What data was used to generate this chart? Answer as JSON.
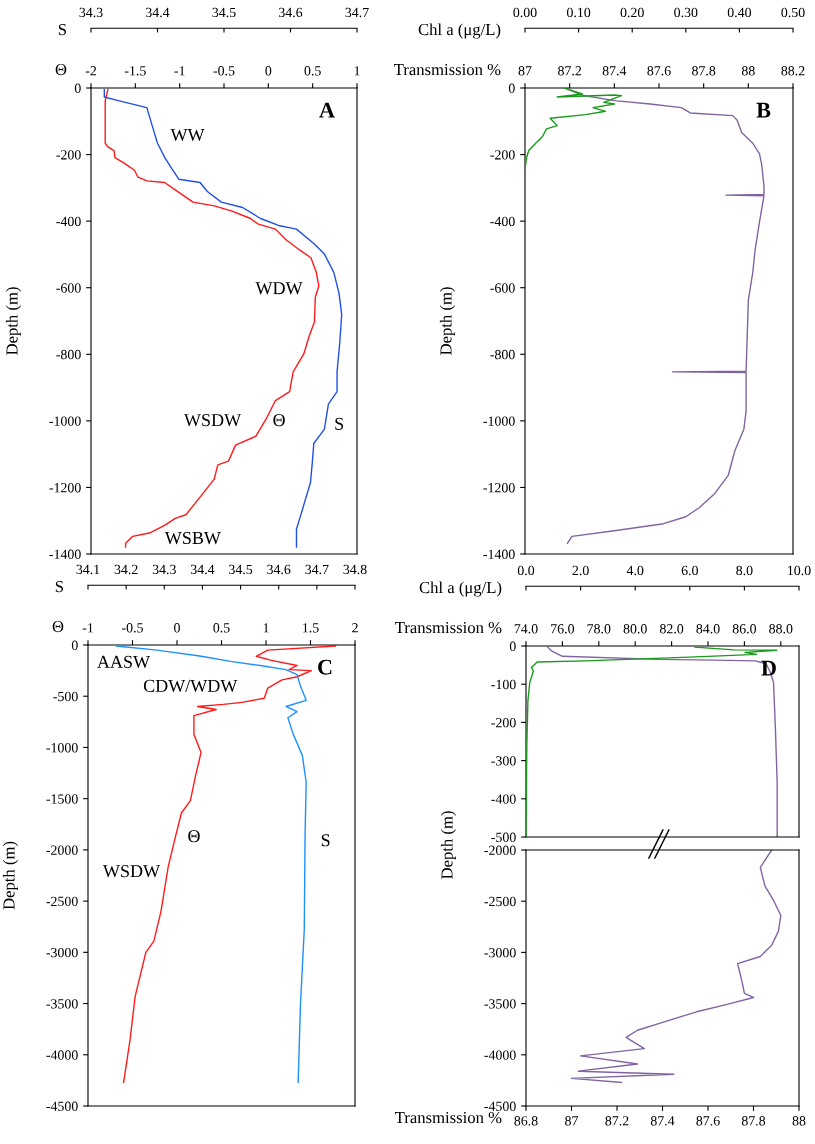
{
  "chart_data": [
    {
      "type": "line",
      "title": "A",
      "xlabel": "Θ",
      "x2label": "S",
      "ylabel": "Depth (m)",
      "xlim": [
        -2,
        1
      ],
      "xticks": [
        -2,
        -1.5,
        -1,
        -0.5,
        0,
        0.5,
        1
      ],
      "x2lim": [
        34.3,
        34.7
      ],
      "x2ticks": [
        34.3,
        34.4,
        34.5,
        34.6,
        34.7
      ],
      "ylim": [
        -1400,
        0
      ],
      "yticks": [
        0,
        -200,
        -400,
        -600,
        -800,
        -1000,
        -1200,
        -1400
      ],
      "series": [
        {
          "color": "#ff1a1a",
          "x": [
            -1.81,
            -1.84,
            -1.84,
            -1.81,
            -1.74,
            -1.73,
            -1.63,
            -1.51,
            -1.47,
            -1.37,
            -1.17,
            -1.05,
            -0.85,
            -0.61,
            -0.41,
            -0.2,
            -0.12,
            0.08,
            0.2,
            0.36,
            0.48,
            0.54,
            0.57,
            0.53,
            0.52,
            0.46,
            0.4,
            0.28,
            0.24,
            0.08,
            -0.02,
            -0.14,
            -0.37,
            -0.45,
            -0.57,
            -0.61,
            -0.77,
            -0.93,
            -1.05,
            -1.17,
            -1.33,
            -1.53,
            -1.61,
            -1.61
          ],
          "values": [
            -5,
            -38,
            -166,
            -177,
            -188,
            -209,
            -225,
            -247,
            -268,
            -279,
            -284,
            -306,
            -343,
            -354,
            -370,
            -392,
            -408,
            -424,
            -456,
            -488,
            -510,
            -553,
            -595,
            -628,
            -703,
            -746,
            -799,
            -853,
            -912,
            -939,
            -992,
            -1046,
            -1073,
            -1121,
            -1132,
            -1175,
            -1229,
            -1282,
            -1293,
            -1314,
            -1336,
            -1347,
            -1368,
            -1379
          ]
        },
        {
          "color": "#2050e8",
          "axis": "x2",
          "x": [
            34.32,
            34.32,
            34.341,
            34.384,
            34.392,
            34.4,
            34.411,
            34.421,
            34.432,
            34.464,
            34.475,
            34.496,
            34.528,
            34.555,
            34.582,
            34.609,
            34.635,
            34.651,
            34.665,
            34.673,
            34.677,
            34.674,
            34.67,
            34.67,
            34.657,
            34.651,
            34.635,
            34.633,
            34.63,
            34.622,
            34.614,
            34.609,
            34.609
          ],
          "values": [
            -5,
            -27,
            -38,
            -59,
            -113,
            -166,
            -209,
            -241,
            -274,
            -284,
            -311,
            -343,
            -359,
            -392,
            -413,
            -424,
            -467,
            -499,
            -553,
            -617,
            -681,
            -767,
            -853,
            -912,
            -950,
            -1025,
            -1068,
            -1121,
            -1186,
            -1239,
            -1293,
            -1325,
            -1379
          ]
        }
      ],
      "annotations": [
        "WW",
        "WDW",
        "WSDW",
        "Θ",
        "S",
        "WSBW"
      ]
    },
    {
      "type": "line",
      "title": "B",
      "xlabel": "Transmission %",
      "x2label": "Chl a (μg/L)",
      "ylabel": "Depth (m)",
      "xlim": [
        87,
        88.2
      ],
      "xticks": [
        87,
        87.2,
        87.4,
        87.6,
        87.8,
        88,
        88.2
      ],
      "x2lim": [
        0,
        0.5
      ],
      "x2ticks": [
        {
          "value": 0,
          "label": "0.00"
        },
        {
          "value": 0.1,
          "label": "0.10"
        },
        {
          "value": 0.2,
          "label": "0.20"
        },
        {
          "value": 0.3,
          "label": "0.30"
        },
        {
          "value": 0.4,
          "label": "0.40"
        },
        {
          "value": 0.5,
          "label": "0.50"
        }
      ],
      "ylim": [
        -1400,
        0
      ],
      "yticks": [
        0,
        -200,
        -400,
        -600,
        -800,
        -1000,
        -1200,
        -1400
      ],
      "series": [
        {
          "color": "#8064a2",
          "x": [
            87.18,
            87.25,
            87.4,
            87.56,
            87.7,
            87.74,
            87.93,
            87.95,
            87.97,
            88.02,
            88.05,
            88.06,
            88.07,
            88.07,
            87.9,
            88.07,
            88.05,
            88.03,
            88.02,
            88.0,
            87.99,
            87.66,
            87.99,
            87.99,
            87.98,
            87.94,
            87.91,
            87.85,
            87.78,
            87.72,
            87.62,
            87.4,
            87.21,
            87.19
          ],
          "values": [
            0,
            -21,
            -38,
            -48,
            -59,
            -75,
            -83,
            -97,
            -134,
            -166,
            -198,
            -231,
            -295,
            -320,
            -322,
            -324,
            -402,
            -488,
            -553,
            -638,
            -851,
            -853,
            -855,
            -971,
            -1025,
            -1089,
            -1164,
            -1218,
            -1261,
            -1288,
            -1309,
            -1330,
            -1347,
            -1368
          ]
        },
        {
          "color": "#1a9a1a",
          "axis": "x2",
          "x": [
            0.073,
            0.107,
            0.06,
            0.167,
            0.18,
            0.147,
            0.167,
            0.127,
            0.15,
            0.113,
            0.047,
            0.06,
            0.04,
            0.033,
            0.02,
            0.007,
            0.003,
            0
          ],
          "values": [
            0,
            -18,
            -27,
            -21,
            -23,
            -43,
            -48,
            -59,
            -70,
            -80,
            -91,
            -113,
            -123,
            -145,
            -166,
            -188,
            -209,
            -241
          ]
        }
      ]
    },
    {
      "type": "line",
      "title": "C",
      "xlabel": "Θ",
      "x2label": "S",
      "ylabel": "Depth (m)",
      "xlim": [
        -1,
        2
      ],
      "xticks": [
        -1,
        -0.5,
        0,
        0.5,
        1,
        1.5,
        2
      ],
      "x2lim": [
        34.1,
        34.8
      ],
      "x2ticks": [
        34.1,
        34.2,
        34.3,
        34.4,
        34.5,
        34.6,
        34.7,
        34.8
      ],
      "ylim": [
        -4500,
        0
      ],
      "yticks": [
        0,
        -500,
        -1000,
        -1500,
        -2000,
        -2500,
        -3000,
        -3500,
        -4000,
        -4500
      ],
      "series": [
        {
          "color": "#ff1a1a",
          "x": [
            1.78,
            1.02,
            0.89,
            1.06,
            1.35,
            1.26,
            1.51,
            1.35,
            1.18,
            1.02,
            0.98,
            0.73,
            0.52,
            0.23,
            0.44,
            0.19,
            0.19,
            0.27,
            0.21,
            0.15,
            0.05,
            -0.02,
            -0.1,
            -0.18,
            -0.26,
            -0.35,
            -0.47,
            -0.53,
            -0.6
          ],
          "values": [
            -10,
            -50,
            -110,
            -150,
            -200,
            -240,
            -250,
            -310,
            -340,
            -420,
            -520,
            -560,
            -580,
            -600,
            -630,
            -690,
            -870,
            -1050,
            -1270,
            -1520,
            -1640,
            -1880,
            -2170,
            -2600,
            -2890,
            -3000,
            -3430,
            -3870,
            -4270
          ]
        },
        {
          "color": "#1e90ff",
          "axis": "x2",
          "x": [
            34.175,
            34.281,
            34.397,
            34.474,
            34.551,
            34.619,
            34.648,
            34.657,
            34.672,
            34.619,
            34.648,
            34.624,
            34.638,
            34.662,
            34.672,
            34.669,
            34.667,
            34.657,
            34.651
          ],
          "values": [
            -10,
            -50,
            -110,
            -160,
            -200,
            -240,
            -290,
            -400,
            -540,
            -600,
            -650,
            -710,
            -870,
            -1080,
            -1340,
            -1880,
            -2780,
            -3510,
            -4270
          ]
        }
      ],
      "annotations": [
        "AASW",
        "CDW/WDW",
        "Θ",
        "S",
        "WSDW"
      ]
    },
    {
      "type": "line",
      "title": "D",
      "xlabel": "Transmission %",
      "x2label": "Chl a (μg/L)",
      "ylabel": "Depth (m)",
      "xlim": [
        74,
        89
      ],
      "xticks": [
        {
          "value": 74,
          "label": "74.0"
        },
        {
          "value": 76,
          "label": "76.0"
        },
        {
          "value": 78,
          "label": "78.0"
        },
        {
          "value": 80,
          "label": "80.0"
        },
        {
          "value": 82,
          "label": "82.0"
        },
        {
          "value": 84,
          "label": "84.0"
        },
        {
          "value": 86,
          "label": "86.0"
        },
        {
          "value": 88,
          "label": "88.0"
        }
      ],
      "x2lim": [
        0,
        10
      ],
      "x2ticks": [
        {
          "value": 0,
          "label": "0.0"
        },
        {
          "value": 2,
          "label": "2.0"
        },
        {
          "value": 4,
          "label": "4.0"
        },
        {
          "value": 6,
          "label": "6.0"
        },
        {
          "value": 8,
          "label": "8.0"
        },
        {
          "value": 10,
          "label": "10.0"
        }
      ],
      "ylim": [
        -500,
        0
      ],
      "yticks": [
        0,
        -100,
        -200,
        -300,
        -400,
        -500
      ],
      "series": [
        {
          "color": "#8064a2",
          "x": [
            75.2,
            75.4,
            76.0,
            81.3,
            84.3,
            86.6,
            87.2,
            87.4,
            87.6,
            87.7,
            87.8,
            87.8
          ],
          "values": [
            -3,
            -13,
            -27,
            -35,
            -37,
            -39,
            -47,
            -66,
            -95,
            -212,
            -357,
            -498
          ]
        },
        {
          "color": "#1a9a1a",
          "axis": "x2",
          "x": [
            6.19,
            7.62,
            9.18,
            8.03,
            8.44,
            5.99,
            2.18,
            0.41,
            0.2,
            0.27,
            0.14,
            0.07,
            0.03,
            0
          ],
          "values": [
            -3,
            -10,
            -11,
            -17,
            -22,
            -29,
            -39,
            -42,
            -56,
            -66,
            -95,
            -144,
            -260,
            -498
          ]
        }
      ]
    },
    {
      "type": "line",
      "xlabel": "Transmission %",
      "xlim": [
        86.8,
        88
      ],
      "xticks": [
        86.8,
        87,
        87.2,
        87.4,
        87.6,
        87.8,
        88
      ],
      "ylim": [
        -4500,
        -2000
      ],
      "yticks": [
        -2000,
        -2500,
        -3000,
        -3500,
        -4000,
        -4500
      ],
      "series": [
        {
          "color": "#8064a2",
          "x": [
            87.88,
            87.83,
            87.85,
            87.89,
            87.92,
            87.91,
            87.88,
            87.83,
            87.73,
            87.75,
            87.76,
            87.8,
            87.68,
            87.55,
            87.39,
            87.29,
            87.24,
            87.32,
            87.04,
            87.29,
            87.03,
            87.45,
            87.0,
            87.22
          ],
          "values": [
            -2000,
            -2170,
            -2350,
            -2500,
            -2640,
            -2790,
            -2930,
            -3040,
            -3110,
            -3290,
            -3400,
            -3440,
            -3510,
            -3580,
            -3690,
            -3760,
            -3830,
            -3940,
            -4010,
            -4090,
            -4160,
            -4190,
            -4230,
            -4270
          ]
        }
      ]
    }
  ]
}
